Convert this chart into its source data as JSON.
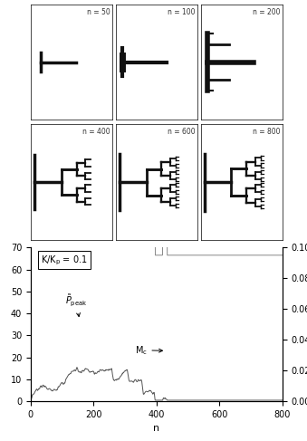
{
  "grid_labels": [
    "n = 50",
    "n = 100",
    "n = 200",
    "n = 400",
    "n = 600",
    "n = 800"
  ],
  "n_values": [
    50,
    100,
    200,
    400,
    600,
    800
  ],
  "xlabel": "n",
  "xlim": [
    0,
    800
  ],
  "ylim_left": [
    0,
    70
  ],
  "ylim_right": [
    0.0,
    0.1
  ],
  "yticks_left": [
    0,
    10,
    20,
    30,
    40,
    50,
    60,
    70
  ],
  "yticks_right": [
    0.0,
    0.02,
    0.04,
    0.06,
    0.08,
    0.1
  ],
  "xticks": [
    0,
    200,
    400,
    600,
    800
  ],
  "box_color": "#ffffff",
  "background_color": "#ffffff",
  "tree_color": "#111111",
  "curve1_color": "#555555",
  "curve2_color": "#888888"
}
